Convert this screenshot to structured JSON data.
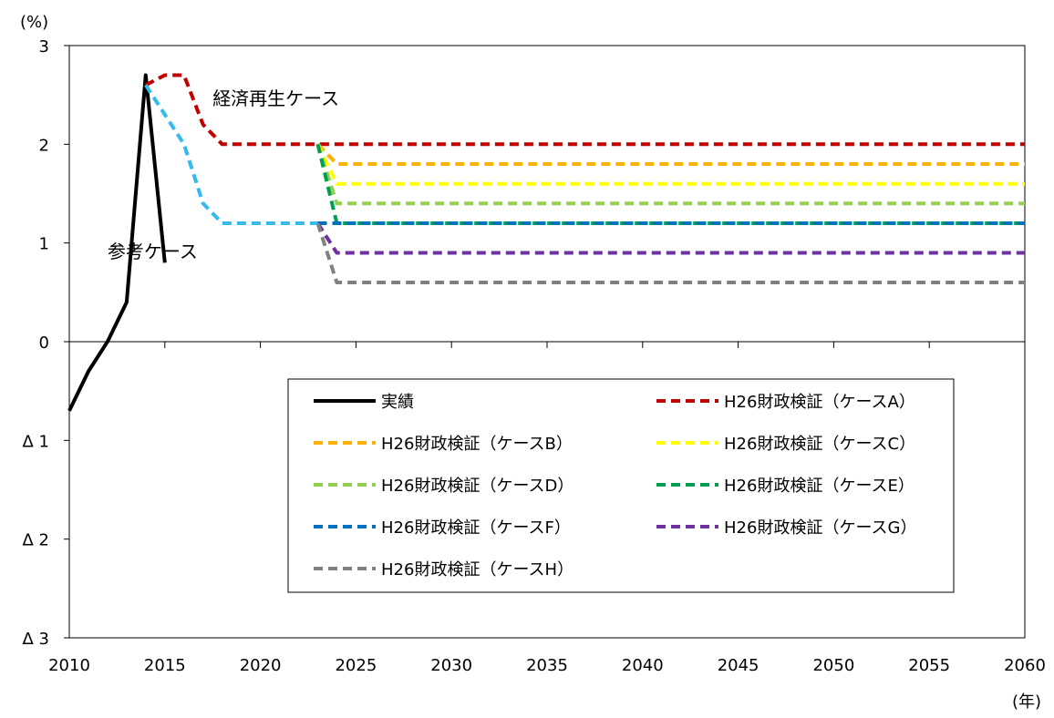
{
  "chart_data": {
    "type": "line",
    "y_unit": "(%)",
    "x_unit": "(年)",
    "xlim": [
      2010,
      2060
    ],
    "ylim": [
      -3,
      3
    ],
    "x_ticks": [
      2010,
      2015,
      2020,
      2025,
      2030,
      2035,
      2040,
      2045,
      2050,
      2055,
      2060
    ],
    "x_tick_labels": [
      "2010",
      "2015",
      "2020",
      "2025",
      "2030",
      "2035",
      "2040",
      "2045",
      "2050",
      "2055",
      "2060"
    ],
    "y_ticks": [
      3,
      2,
      1,
      0,
      -1,
      -2,
      -3
    ],
    "y_tick_labels": [
      "3",
      "2",
      "1",
      "0",
      "Δ 1",
      "Δ 2",
      "Δ 3"
    ],
    "grid": false,
    "legend_position": "center",
    "annotations": [
      {
        "text": "経済再生ケース",
        "x": 2017.5,
        "y": 2.4
      },
      {
        "text": "参考ケース",
        "x": 2012.0,
        "y": 0.85
      }
    ],
    "series": [
      {
        "name": "実績",
        "color": "#000000",
        "dashed": false,
        "points": [
          [
            2010,
            -0.7
          ],
          [
            2011,
            -0.3
          ],
          [
            2012,
            0.0
          ],
          [
            2013,
            0.4
          ],
          [
            2014,
            2.7
          ],
          [
            2015,
            0.8
          ]
        ]
      },
      {
        "name": "H26財政検証（ケースA）",
        "color": "#c00000",
        "dashed": true,
        "points": [
          [
            2014,
            2.6
          ],
          [
            2015,
            2.7
          ],
          [
            2016,
            2.7
          ],
          [
            2017,
            2.2
          ],
          [
            2018,
            2.0
          ],
          [
            2023,
            2.0
          ],
          [
            2060,
            2.0
          ]
        ]
      },
      {
        "name": "H26財政検証（ケースB）",
        "color": "#ffb000",
        "dashed": true,
        "points": [
          [
            2023,
            2.0
          ],
          [
            2024,
            1.8
          ],
          [
            2060,
            1.8
          ]
        ]
      },
      {
        "name": "H26財政検証（ケースC）",
        "color": "#ffff00",
        "dashed": true,
        "points": [
          [
            2023,
            2.0
          ],
          [
            2024,
            1.6
          ],
          [
            2060,
            1.6
          ]
        ]
      },
      {
        "name": "H26財政検証（ケースD）",
        "color": "#92d050",
        "dashed": true,
        "points": [
          [
            2023,
            2.0
          ],
          [
            2024,
            1.4
          ],
          [
            2060,
            1.4
          ]
        ]
      },
      {
        "name": "H26財政検証（ケースE）",
        "color": "#00a050",
        "dashed": true,
        "points": [
          [
            2023,
            2.0
          ],
          [
            2024,
            1.2
          ],
          [
            2060,
            1.2
          ]
        ]
      },
      {
        "name": "H26財政検証（ケースF）",
        "color": "#0070c0",
        "dashed": true,
        "points": [
          [
            2023,
            1.2
          ],
          [
            2060,
            1.2
          ]
        ]
      },
      {
        "name": "H26財政検証（ケースG）",
        "color": "#7030a0",
        "dashed": true,
        "points": [
          [
            2023,
            1.2
          ],
          [
            2024,
            0.9
          ],
          [
            2060,
            0.9
          ]
        ]
      },
      {
        "name": "H26財政検証（ケースH）",
        "color": "#808080",
        "dashed": true,
        "points": [
          [
            2023,
            1.2
          ],
          [
            2024,
            0.6
          ],
          [
            2060,
            0.6
          ]
        ]
      },
      {
        "name": "参考ケース",
        "color": "#33bbee",
        "dashed": true,
        "in_legend": false,
        "points": [
          [
            2014,
            2.6
          ],
          [
            2015,
            2.3
          ],
          [
            2016,
            2.0
          ],
          [
            2017,
            1.4
          ],
          [
            2018,
            1.2
          ],
          [
            2023,
            1.2
          ]
        ]
      }
    ]
  }
}
